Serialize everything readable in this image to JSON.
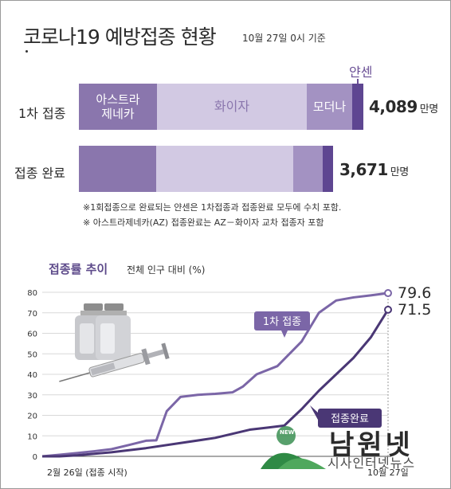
{
  "header": {
    "title": "코로나19 예방접종 현황",
    "subtitle": "10월 27일 0시 기준"
  },
  "colors": {
    "astra": "#8a76ad",
    "pfizer": "#d2c9e3",
    "moderna": "#a392c2",
    "janssen": "#5e4691",
    "line": "#7b66a7",
    "line_dark": "#4a3775"
  },
  "bars": {
    "first_label": "1차 접종",
    "done_label": "접종 완료",
    "astra_label": "아스트라\n제네카",
    "pfizer_label": "화이자",
    "moderna_label": "모더나",
    "janssen_label": "얀센",
    "first_total": "4,089",
    "done_total": "3,671",
    "unit": "만명"
  },
  "notes": {
    "note1": "※1회접종으로 완료되는 얀센은 1차접종과 접종완료 모두에 수치 포함.",
    "note2": "※ 아스트라제네카(AZ) 접종완료는 AZ－화이자 교차 접종자 포함"
  },
  "trend": {
    "title": "접종률 추이",
    "subtitle": "전체 인구 대비 (%)",
    "x_start_label": "2월 26일 (접종 시작)",
    "x_end_label": "10월 27일",
    "first_series_label": "1차 접종",
    "done_series_label": "접종완료",
    "first_end_value": "79.6",
    "done_end_value": "71.5"
  },
  "logo": {
    "name": "남원넷",
    "tagline": "시사인터넷뉴스",
    "badge": "NEW"
  },
  "chart_data": [
    {
      "type": "bar",
      "stacked": true,
      "categories": [
        "1차 접종",
        "접종 완료"
      ],
      "series": [
        {
          "name": "아스트라제네카",
          "values": [
            1110,
            1100
          ]
        },
        {
          "name": "화이자",
          "values": [
            2240,
            2010
          ]
        },
        {
          "name": "모더나",
          "values": [
            600,
            440
          ]
        },
        {
          "name": "얀센",
          "values": [
            139,
            121
          ]
        }
      ],
      "totals": [
        4089,
        3671
      ],
      "unit": "만명"
    },
    {
      "type": "line",
      "title": "접종률 추이",
      "ylabel": "전체 인구 대비 (%)",
      "ylim": [
        0,
        80
      ],
      "yticks": [
        0,
        10,
        20,
        30,
        40,
        50,
        60,
        70,
        80
      ],
      "grid": true,
      "x_range": [
        "2월 26일",
        "10월 27일"
      ],
      "series": [
        {
          "name": "1차 접종",
          "x": [
            0,
            0.05,
            0.1,
            0.15,
            0.2,
            0.25,
            0.3,
            0.33,
            0.36,
            0.4,
            0.45,
            0.5,
            0.55,
            0.58,
            0.62,
            0.68,
            0.75,
            0.8,
            0.85,
            0.9,
            0.95,
            1.0
          ],
          "values": [
            0,
            0.8,
            1.6,
            2.5,
            3.5,
            5.5,
            7.6,
            7.8,
            22,
            29,
            30,
            30.5,
            31.2,
            34,
            40,
            44,
            56,
            70,
            76,
            77.5,
            78.5,
            79.6
          ]
        },
        {
          "name": "접종완료",
          "x": [
            0,
            0.05,
            0.1,
            0.2,
            0.3,
            0.4,
            0.5,
            0.55,
            0.6,
            0.65,
            0.7,
            0.75,
            0.8,
            0.85,
            0.9,
            0.95,
            1.0
          ],
          "values": [
            0,
            0,
            0.5,
            2,
            4,
            6.5,
            9,
            11,
            13,
            14,
            15,
            23,
            32,
            40,
            48,
            58,
            71.5
          ]
        }
      ]
    }
  ]
}
